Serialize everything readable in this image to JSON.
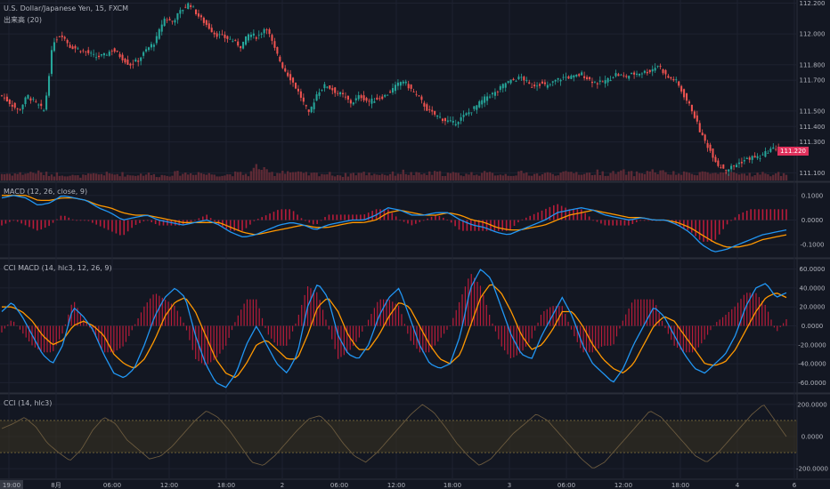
{
  "chart_data": [
    {
      "type": "candlestick",
      "title": "U.S. Dollar/Japanese Yen, 15, FXCM",
      "volume_label": "出来高 (20)",
      "y_ticks": [
        "112.200",
        "112.000",
        "111.800",
        "111.700",
        "111.500",
        "111.400",
        "111.300",
        "111.100"
      ],
      "ylim": [
        111.05,
        112.22
      ],
      "last_price": "111.220",
      "close_path": [
        111.6,
        111.55,
        111.5,
        111.6,
        111.55,
        111.5,
        111.95,
        112.0,
        111.92,
        111.9,
        111.88,
        111.85,
        111.86,
        111.9,
        111.85,
        111.8,
        111.83,
        111.9,
        111.95,
        112.1,
        112.08,
        112.15,
        112.2,
        112.12,
        112.06,
        112.0,
        111.98,
        111.96,
        111.92,
        112.0,
        111.98,
        112.05,
        111.9,
        111.78,
        111.7,
        111.6,
        111.48,
        111.62,
        111.67,
        111.63,
        111.6,
        111.55,
        111.6,
        111.56,
        111.58,
        111.6,
        111.65,
        111.7,
        111.64,
        111.58,
        111.5,
        111.47,
        111.44,
        111.42,
        111.46,
        111.5,
        111.55,
        111.6,
        111.62,
        111.68,
        111.7,
        111.72,
        111.66,
        111.68,
        111.66,
        111.7,
        111.72,
        111.72,
        111.74,
        111.7,
        111.68,
        111.7,
        111.74,
        111.72,
        111.74,
        111.75,
        111.76,
        111.8,
        111.72,
        111.7,
        111.6,
        111.5,
        111.35,
        111.25,
        111.15,
        111.12,
        111.15,
        111.18,
        111.2,
        111.2,
        111.25,
        111.26,
        111.22
      ],
      "volume_path": [
        0.2,
        0.2,
        0.2,
        0.22,
        0.25,
        0.2,
        0.18,
        0.2,
        0.15,
        0.12,
        0.15,
        0.18,
        0.2,
        0.18,
        0.2,
        0.15,
        0.18,
        0.2,
        0.15,
        0.15,
        0.2,
        0.22,
        0.2,
        0.25,
        0.18,
        0.2,
        0.15,
        0.2,
        0.2,
        0.18,
        0.45,
        0.25,
        0.2,
        0.3,
        0.25,
        0.2,
        0.18,
        0.2,
        0.2,
        0.18,
        0.15,
        0.2,
        0.22,
        0.2,
        0.2,
        0.18,
        0.2,
        0.25,
        0.2,
        0.18,
        0.2,
        0.22,
        0.2,
        0.2,
        0.18,
        0.2,
        0.22,
        0.2,
        0.2,
        0.18,
        0.18,
        0.22,
        0.2,
        0.18,
        0.2,
        0.22,
        0.2,
        0.25,
        0.22,
        0.2,
        0.25,
        0.2,
        0.22,
        0.25,
        0.2,
        0.22,
        0.28,
        0.25,
        0.22,
        0.2,
        0.2,
        0.22,
        0.25,
        0.22,
        0.2,
        0.2,
        0.18,
        0.2,
        0.18,
        0.2,
        0.18,
        0.2,
        0.18
      ]
    },
    {
      "type": "line",
      "title": "MACD (12, 26, close, 9)",
      "y_ticks": [
        "0.1000",
        "0.0000",
        "-0.1000"
      ],
      "ylim": [
        -0.15,
        0.15
      ],
      "macd_path": [
        0.09,
        0.1,
        0.09,
        0.06,
        0.07,
        0.1,
        0.09,
        0.08,
        0.05,
        0.03,
        0.0,
        0.01,
        0.02,
        0.0,
        -0.01,
        -0.02,
        -0.01,
        0.0,
        -0.02,
        -0.05,
        -0.07,
        -0.06,
        -0.04,
        -0.02,
        -0.01,
        -0.02,
        -0.04,
        -0.02,
        -0.01,
        0.0,
        0.0,
        0.02,
        0.05,
        0.04,
        0.02,
        0.02,
        0.03,
        0.03,
        0.0,
        -0.02,
        -0.03,
        -0.05,
        -0.06,
        -0.04,
        -0.02,
        0.0,
        0.03,
        0.04,
        0.05,
        0.04,
        0.02,
        0.01,
        0.0,
        0.01,
        0.0,
        0.0,
        -0.02,
        -0.05,
        -0.1,
        -0.13,
        -0.12,
        -0.1,
        -0.08,
        -0.06,
        -0.05,
        -0.04
      ],
      "signal_path": [
        0.1,
        0.1,
        0.1,
        0.08,
        0.08,
        0.09,
        0.09,
        0.08,
        0.06,
        0.05,
        0.03,
        0.02,
        0.02,
        0.01,
        0.0,
        -0.01,
        -0.01,
        -0.01,
        -0.01,
        -0.03,
        -0.05,
        -0.06,
        -0.05,
        -0.04,
        -0.03,
        -0.02,
        -0.03,
        -0.03,
        -0.02,
        -0.01,
        -0.01,
        0.0,
        0.03,
        0.04,
        0.03,
        0.02,
        0.02,
        0.03,
        0.02,
        0.0,
        -0.01,
        -0.03,
        -0.04,
        -0.04,
        -0.03,
        -0.02,
        0.0,
        0.02,
        0.03,
        0.04,
        0.03,
        0.02,
        0.01,
        0.01,
        0.0,
        0.0,
        -0.01,
        -0.03,
        -0.06,
        -0.09,
        -0.11,
        -0.11,
        -0.1,
        -0.08,
        -0.07,
        -0.06
      ]
    },
    {
      "type": "line",
      "title": "CCI MACD (14, hlc3, 12, 26, 9)",
      "y_ticks": [
        "60.0000",
        "40.0000",
        "20.0000",
        "0.0000",
        "-20.0000",
        "-40.0000",
        "-60.0000"
      ],
      "ylim": [
        -70,
        70
      ],
      "macd_path": [
        15,
        25,
        10,
        -10,
        -30,
        -40,
        -20,
        20,
        10,
        -5,
        -30,
        -50,
        -55,
        -45,
        -20,
        10,
        30,
        40,
        30,
        -10,
        -40,
        -60,
        -65,
        -50,
        -20,
        0,
        -20,
        -40,
        -50,
        -30,
        20,
        45,
        30,
        -10,
        -30,
        -35,
        -20,
        10,
        30,
        40,
        10,
        -20,
        -40,
        -45,
        -40,
        -10,
        40,
        60,
        50,
        20,
        -10,
        -30,
        -35,
        -10,
        10,
        30,
        10,
        -20,
        -40,
        -50,
        -60,
        -45,
        -20,
        0,
        20,
        10,
        -10,
        -30,
        -45,
        -50,
        -40,
        -30,
        -10,
        20,
        40,
        45,
        30,
        35
      ],
      "signal_path": [
        20,
        20,
        15,
        5,
        -10,
        -20,
        -15,
        0,
        5,
        0,
        -10,
        -30,
        -40,
        -45,
        -35,
        -15,
        10,
        25,
        30,
        15,
        -10,
        -35,
        -50,
        -55,
        -40,
        -20,
        -15,
        -25,
        -35,
        -35,
        -10,
        20,
        30,
        15,
        -10,
        -25,
        -25,
        -10,
        10,
        25,
        20,
        0,
        -20,
        -35,
        -40,
        -30,
        0,
        30,
        45,
        35,
        15,
        -10,
        -25,
        -20,
        -5,
        15,
        15,
        0,
        -20,
        -35,
        -45,
        -50,
        -40,
        -20,
        0,
        10,
        5,
        -10,
        -25,
        -40,
        -42,
        -38,
        -25,
        -5,
        15,
        30,
        35,
        30
      ]
    },
    {
      "type": "line",
      "title": "CCI (14, hlc3)",
      "y_ticks": [
        "200.0000",
        "0.0000",
        "-200.0000"
      ],
      "ylim": [
        -260,
        260
      ],
      "band": [
        100,
        -100
      ],
      "cci_path": [
        50,
        80,
        120,
        60,
        -40,
        -100,
        -150,
        -80,
        40,
        120,
        80,
        -20,
        -80,
        -140,
        -120,
        -60,
        20,
        100,
        160,
        120,
        40,
        -60,
        -160,
        -180,
        -120,
        -40,
        40,
        110,
        130,
        60,
        -40,
        -120,
        -160,
        -100,
        -20,
        60,
        140,
        200,
        150,
        60,
        -40,
        -120,
        -180,
        -140,
        -60,
        20,
        80,
        140,
        100,
        20,
        -60,
        -140,
        -200,
        -160,
        -80,
        0,
        80,
        160,
        120,
        40,
        -40,
        -120,
        -160,
        -100,
        -20,
        60,
        140,
        200,
        100,
        0
      ]
    }
  ],
  "x_axis": {
    "ticks": [
      "19:00",
      "8月",
      "06:00",
      "12:00",
      "18:00",
      "2",
      "06:00",
      "12:00",
      "18:00",
      "3",
      "06:00",
      "12:00",
      "18:00",
      "4",
      "6"
    ],
    "cursor_label": "19:00"
  },
  "colors": {
    "background": "#131722",
    "grid": "#1e2230",
    "up": "#26a69a",
    "down": "#ef5350",
    "volume": "#5d2a35",
    "macd_line": "#2196f3",
    "signal_line": "#ff9800",
    "histogram": "#b71c3a",
    "cci_line": "#6b5a3e",
    "cci_band": "#3a3320",
    "pane_separator": "#2a2e39",
    "badge": "#e0315c"
  }
}
